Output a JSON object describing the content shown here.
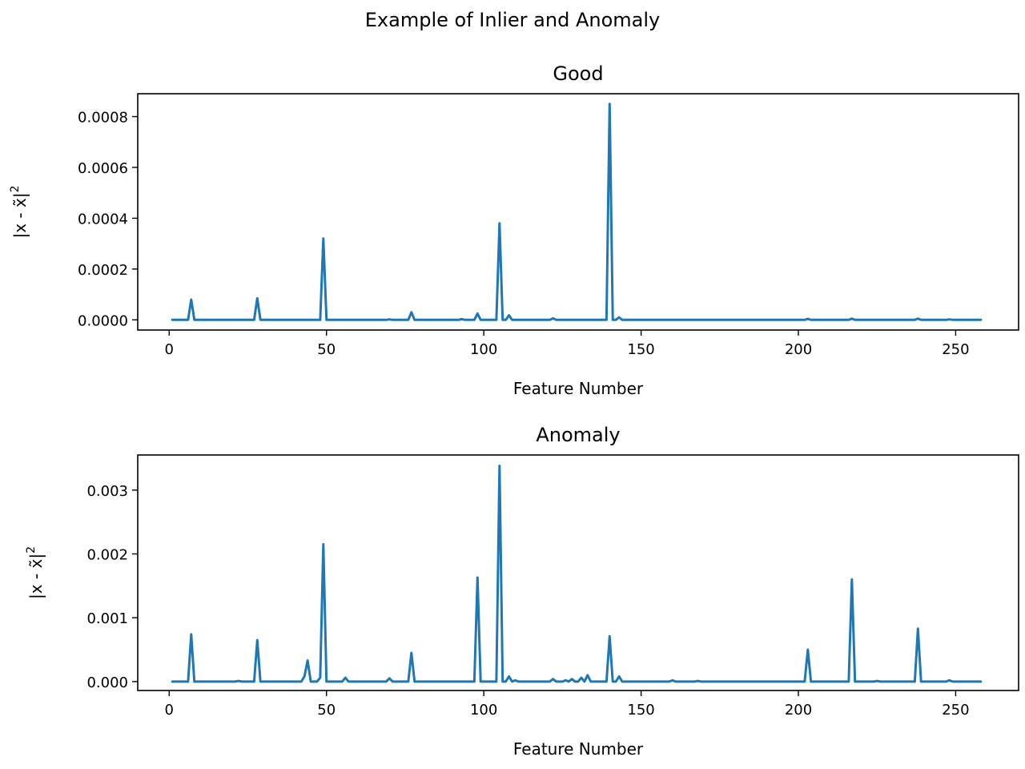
{
  "figure": {
    "suptitle": "Example of Inlier and Anomaly",
    "line_color": "#1f77b4"
  },
  "chart_data": [
    {
      "type": "line",
      "title": "Good",
      "xlabel": "Feature Number",
      "ylabel": "|x - x̃|",
      "ylabel_superscript": "2",
      "xlim": [
        -10,
        270
      ],
      "ylim": [
        -4e-05,
        0.00089
      ],
      "xticks": [
        0,
        50,
        100,
        150,
        200,
        250
      ],
      "xtick_labels": [
        "0",
        "50",
        "100",
        "150",
        "200",
        "250"
      ],
      "yticks": [
        0,
        0.0002,
        0.0004,
        0.0006,
        0.0008
      ],
      "ytick_labels": [
        "0.0000",
        "0.0002",
        "0.0004",
        "0.0006",
        "0.0008"
      ],
      "x_range": [
        1,
        258
      ],
      "baseline": 0,
      "peaks": [
        {
          "x": 7,
          "y": 8e-05
        },
        {
          "x": 28,
          "y": 8.5e-05
        },
        {
          "x": 49,
          "y": 0.00032
        },
        {
          "x": 70,
          "y": 2e-06
        },
        {
          "x": 77,
          "y": 3e-05
        },
        {
          "x": 93,
          "y": 3e-06
        },
        {
          "x": 98,
          "y": 2.5e-05
        },
        {
          "x": 105,
          "y": 0.00038
        },
        {
          "x": 108,
          "y": 1.8e-05
        },
        {
          "x": 122,
          "y": 6e-06
        },
        {
          "x": 140,
          "y": 0.00085
        },
        {
          "x": 143,
          "y": 1e-05
        },
        {
          "x": 203,
          "y": 4e-06
        },
        {
          "x": 217,
          "y": 5e-06
        },
        {
          "x": 238,
          "y": 5e-06
        },
        {
          "x": 248,
          "y": 2e-06
        }
      ]
    },
    {
      "type": "line",
      "title": "Anomaly",
      "xlabel": "Feature Number",
      "ylabel": "|x - x̃|",
      "ylabel_superscript": "2",
      "xlim": [
        -10,
        270
      ],
      "ylim": [
        -0.00014,
        0.00355
      ],
      "xticks": [
        0,
        50,
        100,
        150,
        200,
        250
      ],
      "xtick_labels": [
        "0",
        "50",
        "100",
        "150",
        "200",
        "250"
      ],
      "yticks": [
        0,
        0.001,
        0.002,
        0.003
      ],
      "ytick_labels": [
        "0.000",
        "0.001",
        "0.002",
        "0.003"
      ],
      "x_range": [
        1,
        258
      ],
      "baseline": 0,
      "peaks": [
        {
          "x": 7,
          "y": 0.00074
        },
        {
          "x": 22,
          "y": 1e-05
        },
        {
          "x": 28,
          "y": 0.00065
        },
        {
          "x": 43,
          "y": 8e-05
        },
        {
          "x": 44,
          "y": 0.00033
        },
        {
          "x": 48,
          "y": 6e-05
        },
        {
          "x": 49,
          "y": 0.00215
        },
        {
          "x": 56,
          "y": 6e-05
        },
        {
          "x": 70,
          "y": 5e-05
        },
        {
          "x": 77,
          "y": 0.00045
        },
        {
          "x": 98,
          "y": 0.00163
        },
        {
          "x": 105,
          "y": 0.00338
        },
        {
          "x": 108,
          "y": 8e-05
        },
        {
          "x": 110,
          "y": 2e-05
        },
        {
          "x": 122,
          "y": 4e-05
        },
        {
          "x": 126,
          "y": 2e-05
        },
        {
          "x": 128,
          "y": 4e-05
        },
        {
          "x": 131,
          "y": 6e-05
        },
        {
          "x": 133,
          "y": 0.0001
        },
        {
          "x": 140,
          "y": 0.00071
        },
        {
          "x": 143,
          "y": 8e-05
        },
        {
          "x": 160,
          "y": 2e-05
        },
        {
          "x": 168,
          "y": 1e-05
        },
        {
          "x": 203,
          "y": 0.0005
        },
        {
          "x": 217,
          "y": 0.0016
        },
        {
          "x": 225,
          "y": 1e-05
        },
        {
          "x": 238,
          "y": 0.00083
        },
        {
          "x": 248,
          "y": 2e-05
        }
      ]
    }
  ]
}
